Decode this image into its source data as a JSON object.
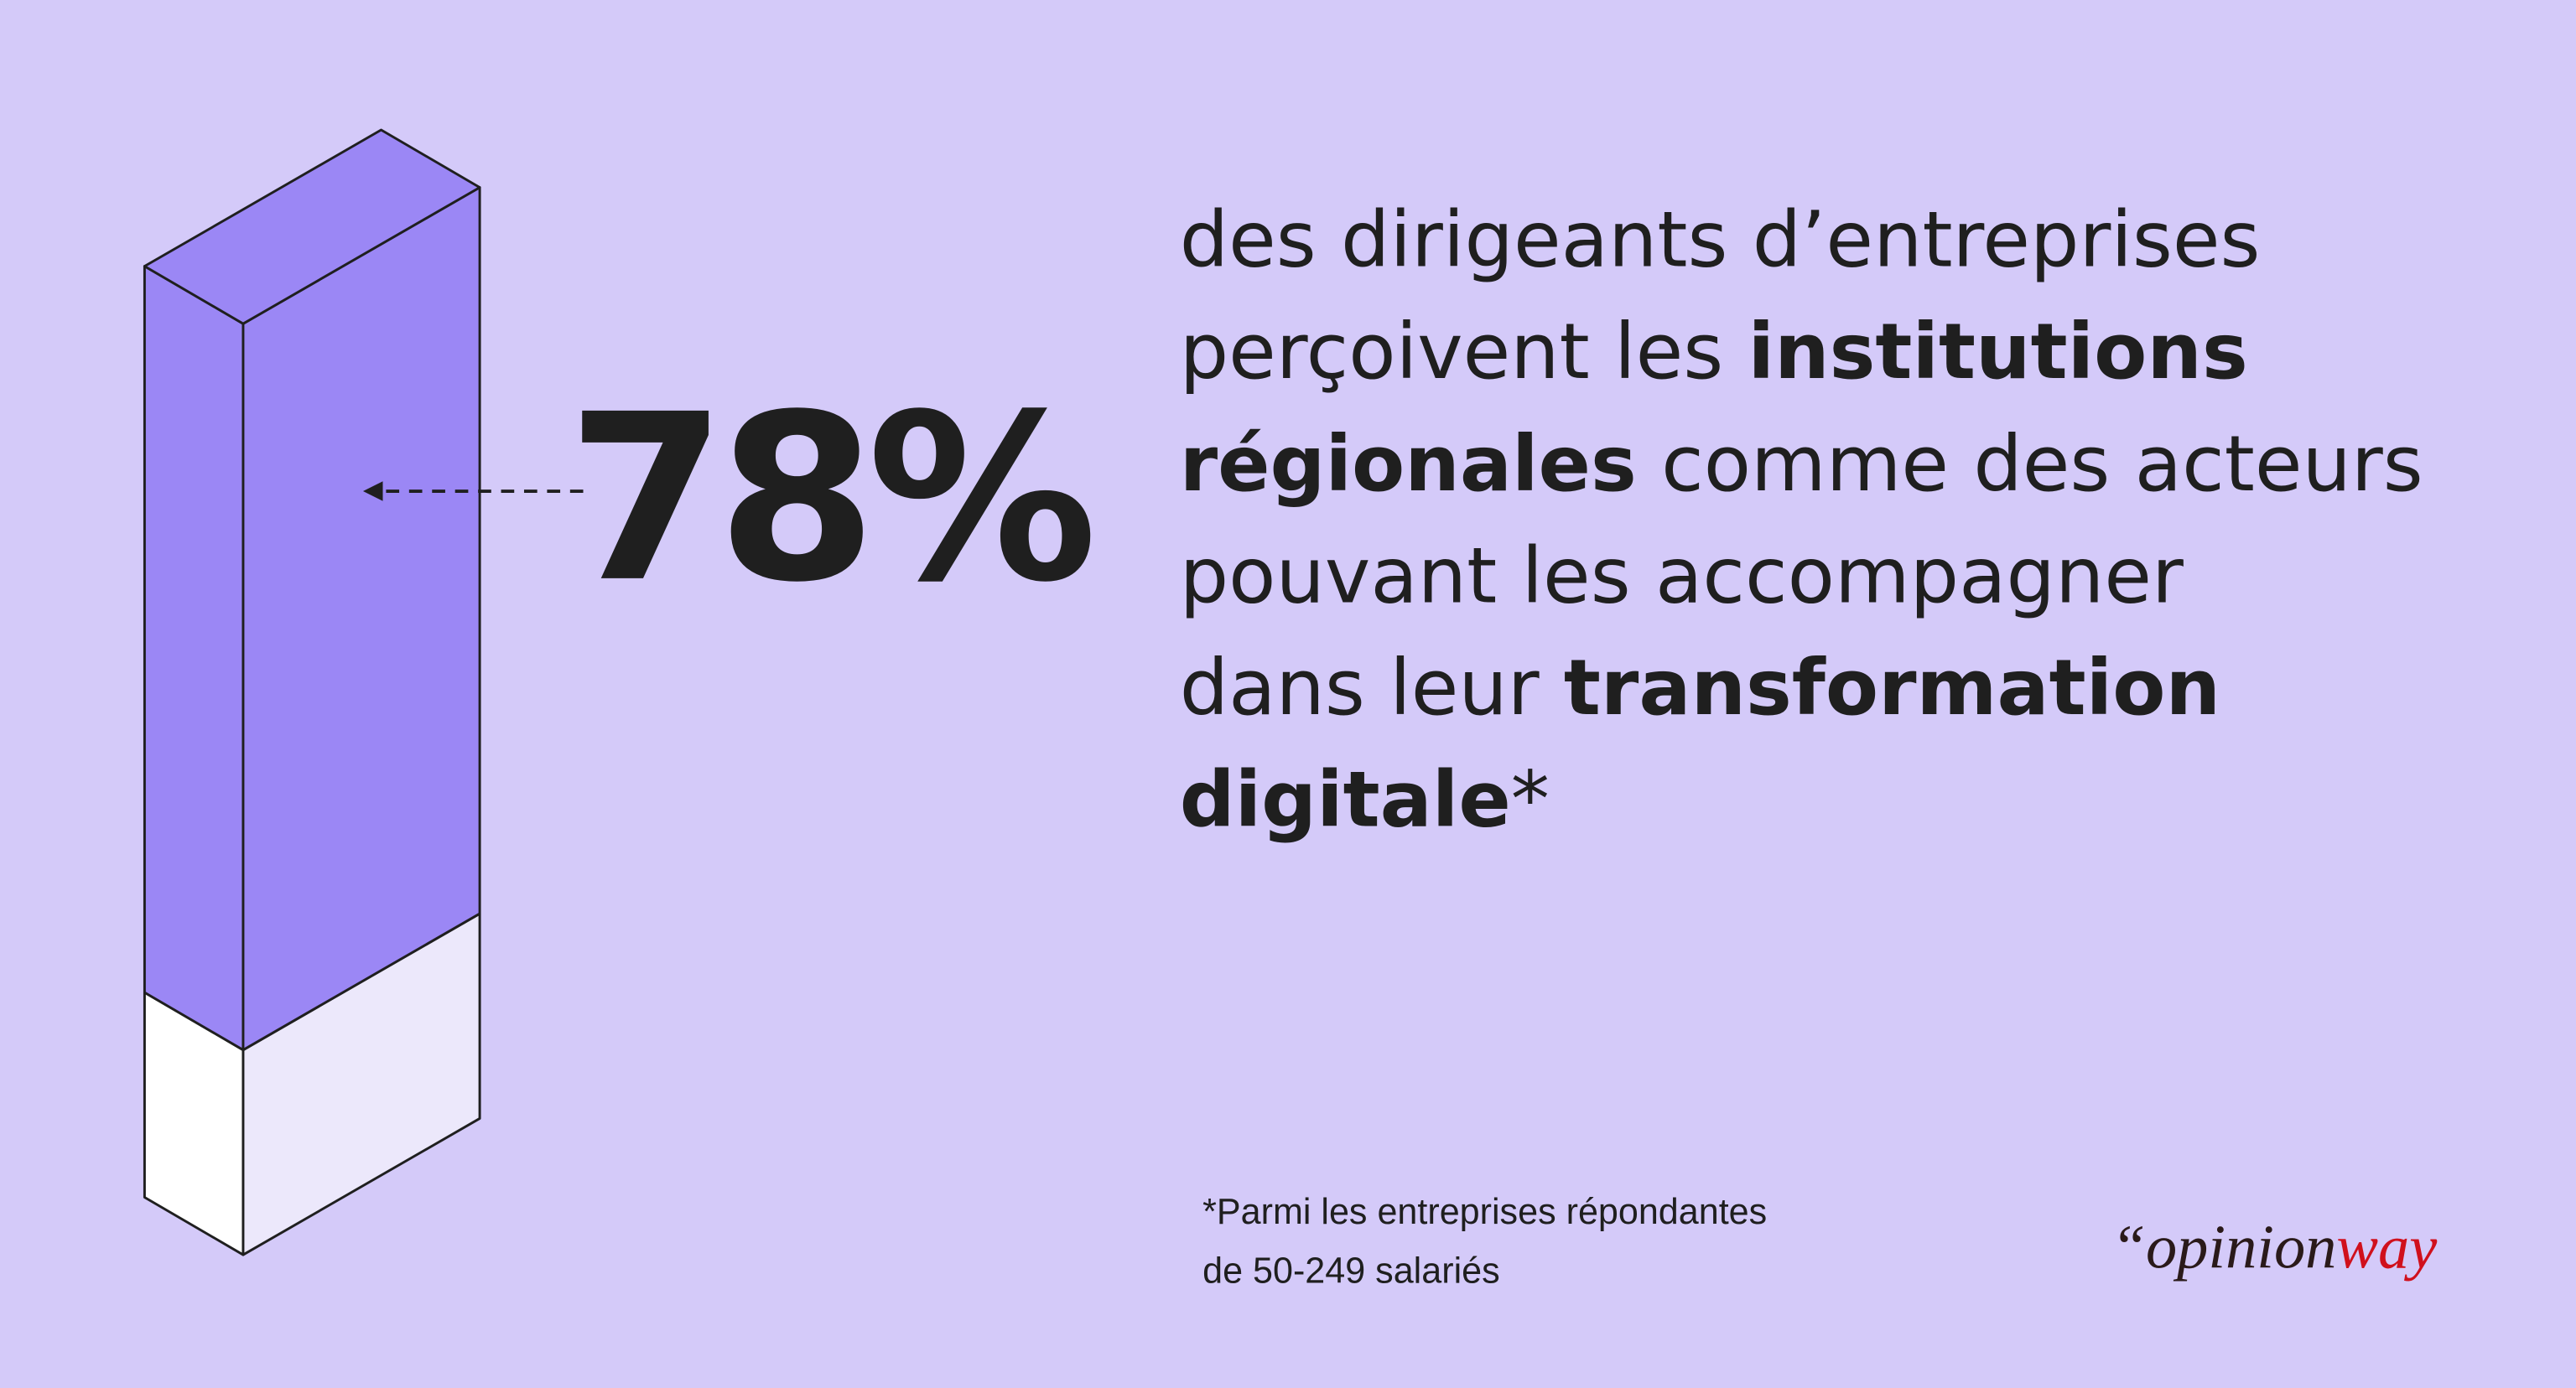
{
  "chart_data": {
    "type": "bar3d",
    "values": [
      78
    ],
    "value_labels": [
      "78%"
    ],
    "ylim": [
      0,
      100
    ],
    "color": "#9b87f5",
    "empty_color": "#ffffff",
    "description": [
      [
        {
          "text": "des dirigeants d’entreprises",
          "bold": false
        }
      ],
      [
        {
          "text": "perçoivent les ",
          "bold": false
        },
        {
          "text": "institutions",
          "bold": true
        }
      ],
      [
        {
          "text": "régionales",
          "bold": true
        },
        {
          "text": " comme des acteurs",
          "bold": false
        }
      ],
      [
        {
          "text": "pouvant les accompagner",
          "bold": false
        }
      ],
      [
        {
          "text": "dans leur ",
          "bold": false
        },
        {
          "text": "transformation",
          "bold": true
        }
      ],
      [
        {
          "text": "digitale",
          "bold": true
        },
        {
          "text": "*",
          "bold": false
        }
      ]
    ],
    "footnote": [
      "*Parmi les entreprises répondantes",
      "de 50-249 salariés"
    ],
    "logo": [
      {
        "text": "“opinion",
        "color": "#2a1a1a"
      },
      {
        "text": "way",
        "color": "#d0101c"
      }
    ]
  }
}
